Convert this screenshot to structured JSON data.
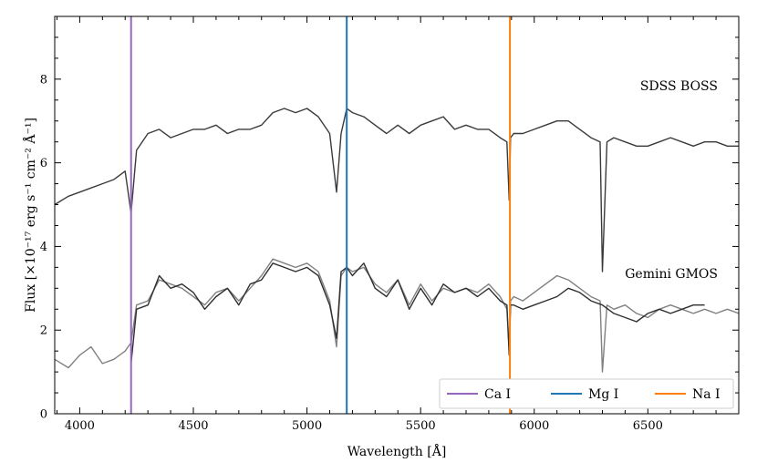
{
  "chart_data": {
    "type": "line",
    "title": "",
    "xlabel": "Wavelength [Å]",
    "ylabel": "Flux [×10⁻¹⁷ erg s⁻¹ cm⁻² Å⁻¹]",
    "xlim": [
      3890,
      6900
    ],
    "ylim": [
      0,
      9.5
    ],
    "x_ticks": [
      4000,
      4500,
      5000,
      5500,
      6000,
      6500
    ],
    "x_tick_labels": [
      "4000",
      "4500",
      "5000",
      "5500",
      "6000",
      "6500"
    ],
    "y_ticks": [
      0,
      2,
      4,
      6,
      8
    ],
    "y_tick_labels": [
      "0",
      "2",
      "4",
      "6",
      "8"
    ],
    "grid": false,
    "legend_position": "bottom-right",
    "annotations": [
      "SDSS BOSS",
      "Gemini GMOS"
    ],
    "series": [
      {
        "name": "SDSS BOSS",
        "color": "#3a3a3a",
        "x": [
          3890,
          3950,
          4000,
          4050,
          4100,
          4150,
          4200,
          4226,
          4250,
          4300,
          4350,
          4400,
          4450,
          4500,
          4550,
          4600,
          4650,
          4700,
          4750,
          4800,
          4850,
          4900,
          4950,
          5000,
          5050,
          5100,
          5130,
          5150,
          5175,
          5200,
          5250,
          5300,
          5350,
          5400,
          5450,
          5500,
          5550,
          5600,
          5650,
          5700,
          5750,
          5800,
          5850,
          5880,
          5890,
          5896,
          5910,
          5950,
          6000,
          6050,
          6100,
          6150,
          6200,
          6250,
          6290,
          6300,
          6320,
          6350,
          6400,
          6450,
          6500,
          6550,
          6600,
          6650,
          6700,
          6750,
          6800,
          6850,
          6900
        ],
        "y": [
          5.0,
          5.2,
          5.3,
          5.4,
          5.5,
          5.6,
          5.8,
          4.8,
          6.3,
          6.7,
          6.8,
          6.6,
          6.7,
          6.8,
          6.8,
          6.9,
          6.7,
          6.8,
          6.8,
          6.9,
          7.2,
          7.3,
          7.2,
          7.3,
          7.1,
          6.7,
          5.3,
          6.7,
          7.3,
          7.2,
          7.1,
          6.9,
          6.7,
          6.9,
          6.7,
          6.9,
          7.0,
          7.1,
          6.8,
          6.9,
          6.8,
          6.8,
          6.6,
          6.5,
          5.1,
          6.6,
          6.7,
          6.7,
          6.8,
          6.9,
          7.0,
          7.0,
          6.8,
          6.6,
          6.5,
          3.4,
          6.5,
          6.6,
          6.5,
          6.4,
          6.4,
          6.5,
          6.6,
          6.5,
          6.4,
          6.5,
          6.5,
          6.4,
          6.4
        ]
      },
      {
        "name": "Gemini GMOS",
        "color": "#2f2f2f",
        "x": [
          4226,
          4250,
          4300,
          4350,
          4400,
          4450,
          4500,
          4550,
          4600,
          4650,
          4700,
          4750,
          4800,
          4850,
          4900,
          4950,
          5000,
          5050,
          5100,
          5130,
          5150,
          5175,
          5200,
          5250,
          5300,
          5350,
          5400,
          5450,
          5500,
          5550,
          5600,
          5650,
          5700,
          5750,
          5800,
          5850,
          5880,
          5890,
          5896,
          5910,
          5950,
          6000,
          6050,
          6100,
          6150,
          6200,
          6250,
          6300,
          6350,
          6400,
          6450,
          6500,
          6550,
          6600,
          6650,
          6700,
          6750
        ],
        "y": [
          1.2,
          2.5,
          2.6,
          3.3,
          3.0,
          3.1,
          2.9,
          2.5,
          2.8,
          3.0,
          2.6,
          3.1,
          3.2,
          3.6,
          3.5,
          3.4,
          3.5,
          3.3,
          2.6,
          1.8,
          3.4,
          3.5,
          3.3,
          3.6,
          3.0,
          2.8,
          3.2,
          2.5,
          3.0,
          2.6,
          3.1,
          2.9,
          3.0,
          2.8,
          3.0,
          2.7,
          2.6,
          1.4,
          2.6,
          2.6,
          2.5,
          2.6,
          2.7,
          2.8,
          3.0,
          2.9,
          2.7,
          2.6,
          2.4,
          2.3,
          2.2,
          2.4,
          2.5,
          2.4,
          2.5,
          2.6,
          2.6
        ]
      },
      {
        "name": "",
        "color": "#808080",
        "x": [
          3890,
          3950,
          4000,
          4050,
          4100,
          4150,
          4200,
          4226,
          4250,
          4300,
          4350,
          4400,
          4450,
          4500,
          4550,
          4600,
          4650,
          4700,
          4750,
          4800,
          4850,
          4900,
          4950,
          5000,
          5050,
          5100,
          5130,
          5150,
          5175,
          5200,
          5250,
          5300,
          5350,
          5400,
          5450,
          5500,
          5550,
          5600,
          5650,
          5700,
          5750,
          5800,
          5850,
          5880,
          5890,
          5896,
          5910,
          5950,
          6000,
          6050,
          6100,
          6150,
          6200,
          6250,
          6290,
          6300,
          6320,
          6350,
          6400,
          6450,
          6500,
          6550,
          6600,
          6650,
          6700,
          6750,
          6800,
          6850,
          6900
        ],
        "y": [
          1.3,
          1.1,
          1.4,
          1.6,
          1.2,
          1.3,
          1.5,
          1.7,
          2.6,
          2.7,
          3.2,
          3.1,
          3.0,
          2.8,
          2.6,
          2.9,
          3.0,
          2.7,
          3.0,
          3.3,
          3.7,
          3.6,
          3.5,
          3.6,
          3.4,
          2.7,
          1.6,
          3.3,
          3.5,
          3.4,
          3.5,
          3.1,
          2.9,
          3.2,
          2.6,
          3.1,
          2.7,
          3.0,
          2.9,
          3.0,
          2.9,
          3.1,
          2.8,
          2.5,
          1.5,
          2.7,
          2.8,
          2.7,
          2.9,
          3.1,
          3.3,
          3.2,
          3.0,
          2.8,
          2.7,
          1.0,
          2.6,
          2.5,
          2.6,
          2.4,
          2.3,
          2.5,
          2.6,
          2.5,
          2.4,
          2.5,
          2.4,
          2.5,
          2.4
        ]
      }
    ],
    "vertical_lines": [
      {
        "label": "Ca I",
        "x": 4226,
        "color": "#9467bd"
      },
      {
        "label": "Mg I",
        "x": 5175,
        "color": "#1f77b4"
      },
      {
        "label": "Na I",
        "x": 5893,
        "color": "#ff7f0e"
      }
    ]
  }
}
